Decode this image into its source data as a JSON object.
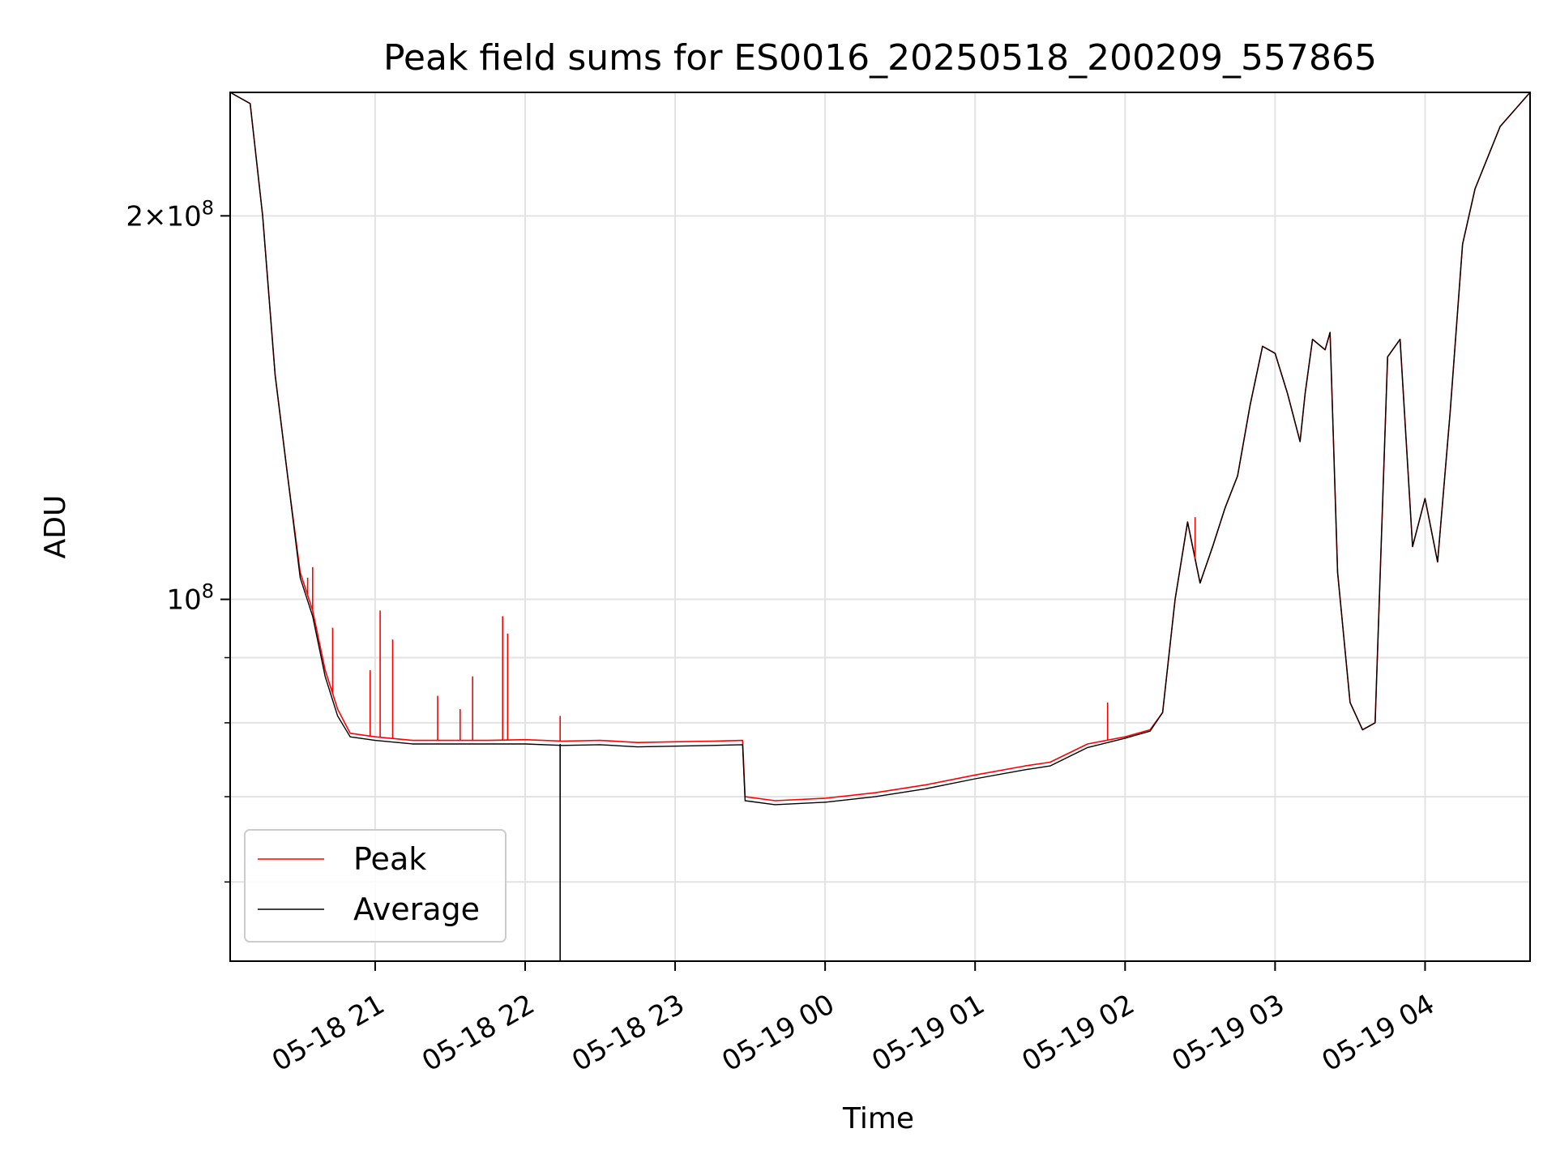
{
  "chart_data": {
    "type": "line",
    "title": "Peak field sums for ES0016_20250518_200209_557865",
    "xlabel": "Time",
    "ylabel": "ADU",
    "x_type": "datetime",
    "xlim": [
      "2025-05-18 20:02",
      "2025-05-19 04:42"
    ],
    "ylim": [
      52000000,
      250000000
    ],
    "yscale": "log",
    "grid": true,
    "legend_position": "lower-left",
    "x_ticks": [
      "2025-05-18 21:00",
      "2025-05-18 22:00",
      "2025-05-18 23:00",
      "2025-05-19 00:00",
      "2025-05-19 01:00",
      "2025-05-19 02:00",
      "2025-05-19 03:00",
      "2025-05-19 04:00"
    ],
    "x_tick_labels": [
      "05-18 21",
      "05-18 22",
      "05-18 23",
      "05-19 00",
      "05-19 01",
      "05-19 02",
      "05-19 03",
      "05-19 04"
    ],
    "y_ticks": [
      100000000,
      200000000
    ],
    "y_tick_labels": [
      {
        "mantissa": "",
        "exp": "8"
      },
      {
        "mantissa": "2",
        "exp": "8"
      }
    ],
    "y_minor_ticks": [
      60000000,
      70000000,
      80000000,
      90000000
    ],
    "x": [
      "2025-05-18 20:02",
      "2025-05-18 20:10",
      "2025-05-18 20:15",
      "2025-05-18 20:20",
      "2025-05-18 20:25",
      "2025-05-18 20:30",
      "2025-05-18 20:35",
      "2025-05-18 20:40",
      "2025-05-18 20:45",
      "2025-05-18 20:50",
      "2025-05-18 21:00",
      "2025-05-18 21:15",
      "2025-05-18 21:30",
      "2025-05-18 21:45",
      "2025-05-18 22:00",
      "2025-05-18 22:15",
      "2025-05-18 22:30",
      "2025-05-18 22:45",
      "2025-05-18 23:00",
      "2025-05-18 23:15",
      "2025-05-18 23:27",
      "2025-05-18 23:28",
      "2025-05-18 23:40",
      "2025-05-19 00:00",
      "2025-05-19 00:20",
      "2025-05-19 00:40",
      "2025-05-19 01:00",
      "2025-05-19 01:20",
      "2025-05-19 01:30",
      "2025-05-19 01:45",
      "2025-05-19 02:00",
      "2025-05-19 02:10",
      "2025-05-19 02:15",
      "2025-05-19 02:20",
      "2025-05-19 02:25",
      "2025-05-19 02:30",
      "2025-05-19 02:35",
      "2025-05-19 02:40",
      "2025-05-19 02:45",
      "2025-05-19 02:50",
      "2025-05-19 02:55",
      "2025-05-19 03:00",
      "2025-05-19 03:05",
      "2025-05-19 03:10",
      "2025-05-19 03:12",
      "2025-05-19 03:15",
      "2025-05-19 03:20",
      "2025-05-19 03:22",
      "2025-05-19 03:25",
      "2025-05-19 03:30",
      "2025-05-19 03:35",
      "2025-05-19 03:40",
      "2025-05-19 03:45",
      "2025-05-19 03:50",
      "2025-05-19 03:55",
      "2025-05-19 04:00",
      "2025-05-19 04:05",
      "2025-05-19 04:10",
      "2025-05-19 04:15",
      "2025-05-19 04:20",
      "2025-05-19 04:30",
      "2025-05-19 04:42"
    ],
    "series": [
      {
        "name": "Peak",
        "color": "#ff0000",
        "values": [
          250000000,
          245000000,
          200000000,
          150000000,
          125000000,
          105000000,
          98000000,
          88000000,
          82000000,
          78500000,
          78000000,
          77500000,
          77500000,
          77500000,
          77600000,
          77400000,
          77500000,
          77200000,
          77300000,
          77400000,
          77500000,
          70000000,
          69500000,
          69800000,
          70500000,
          71500000,
          72800000,
          74000000,
          74500000,
          77000000,
          78000000,
          79000000,
          81500000,
          100000000,
          115000000,
          103000000,
          110000000,
          118000000,
          125000000,
          142000000,
          158000000,
          156000000,
          145000000,
          133000000,
          145000000,
          160000000,
          157000000,
          162000000,
          105000000,
          83000000,
          79000000,
          80000000,
          155000000,
          160000000,
          110000000,
          120000000,
          107000000,
          140000000,
          190000000,
          210000000,
          235000000,
          250000000
        ]
      },
      {
        "name": "Average",
        "color": "#000000",
        "values": [
          250000000,
          245000000,
          200000000,
          150000000,
          125000000,
          104000000,
          97000000,
          87000000,
          81000000,
          78000000,
          77500000,
          77000000,
          77000000,
          77000000,
          77000000,
          76800000,
          76900000,
          76600000,
          76700000,
          76800000,
          76900000,
          69500000,
          69000000,
          69300000,
          70000000,
          71000000,
          72300000,
          73500000,
          74000000,
          76500000,
          77800000,
          78800000,
          81500000,
          100000000,
          115000000,
          103000000,
          110000000,
          118000000,
          125000000,
          142000000,
          158000000,
          156000000,
          145000000,
          133000000,
          145000000,
          160000000,
          157000000,
          162000000,
          105000000,
          83000000,
          79000000,
          80000000,
          155000000,
          160000000,
          110000000,
          120000000,
          107000000,
          140000000,
          190000000,
          210000000,
          235000000,
          250000000
        ]
      }
    ],
    "peak_spikes": [
      {
        "x": "2025-05-18 20:33",
        "y": 104000000
      },
      {
        "x": "2025-05-18 20:35",
        "y": 106000000
      },
      {
        "x": "2025-05-18 20:43",
        "y": 95000000
      },
      {
        "x": "2025-05-18 20:58",
        "y": 88000000
      },
      {
        "x": "2025-05-18 21:02",
        "y": 98000000
      },
      {
        "x": "2025-05-18 21:07",
        "y": 93000000
      },
      {
        "x": "2025-05-18 21:25",
        "y": 84000000
      },
      {
        "x": "2025-05-18 21:34",
        "y": 82000000
      },
      {
        "x": "2025-05-18 21:39",
        "y": 87000000
      },
      {
        "x": "2025-05-18 21:51",
        "y": 97000000
      },
      {
        "x": "2025-05-18 21:53",
        "y": 94000000
      },
      {
        "x": "2025-05-18 22:14",
        "y": 81000000
      },
      {
        "x": "2025-05-19 01:53",
        "y": 83000000
      },
      {
        "x": "2025-05-19 02:28",
        "y": 116000000
      }
    ],
    "average_dropout": {
      "x": "2025-05-18 22:14",
      "y": 52000000
    }
  }
}
